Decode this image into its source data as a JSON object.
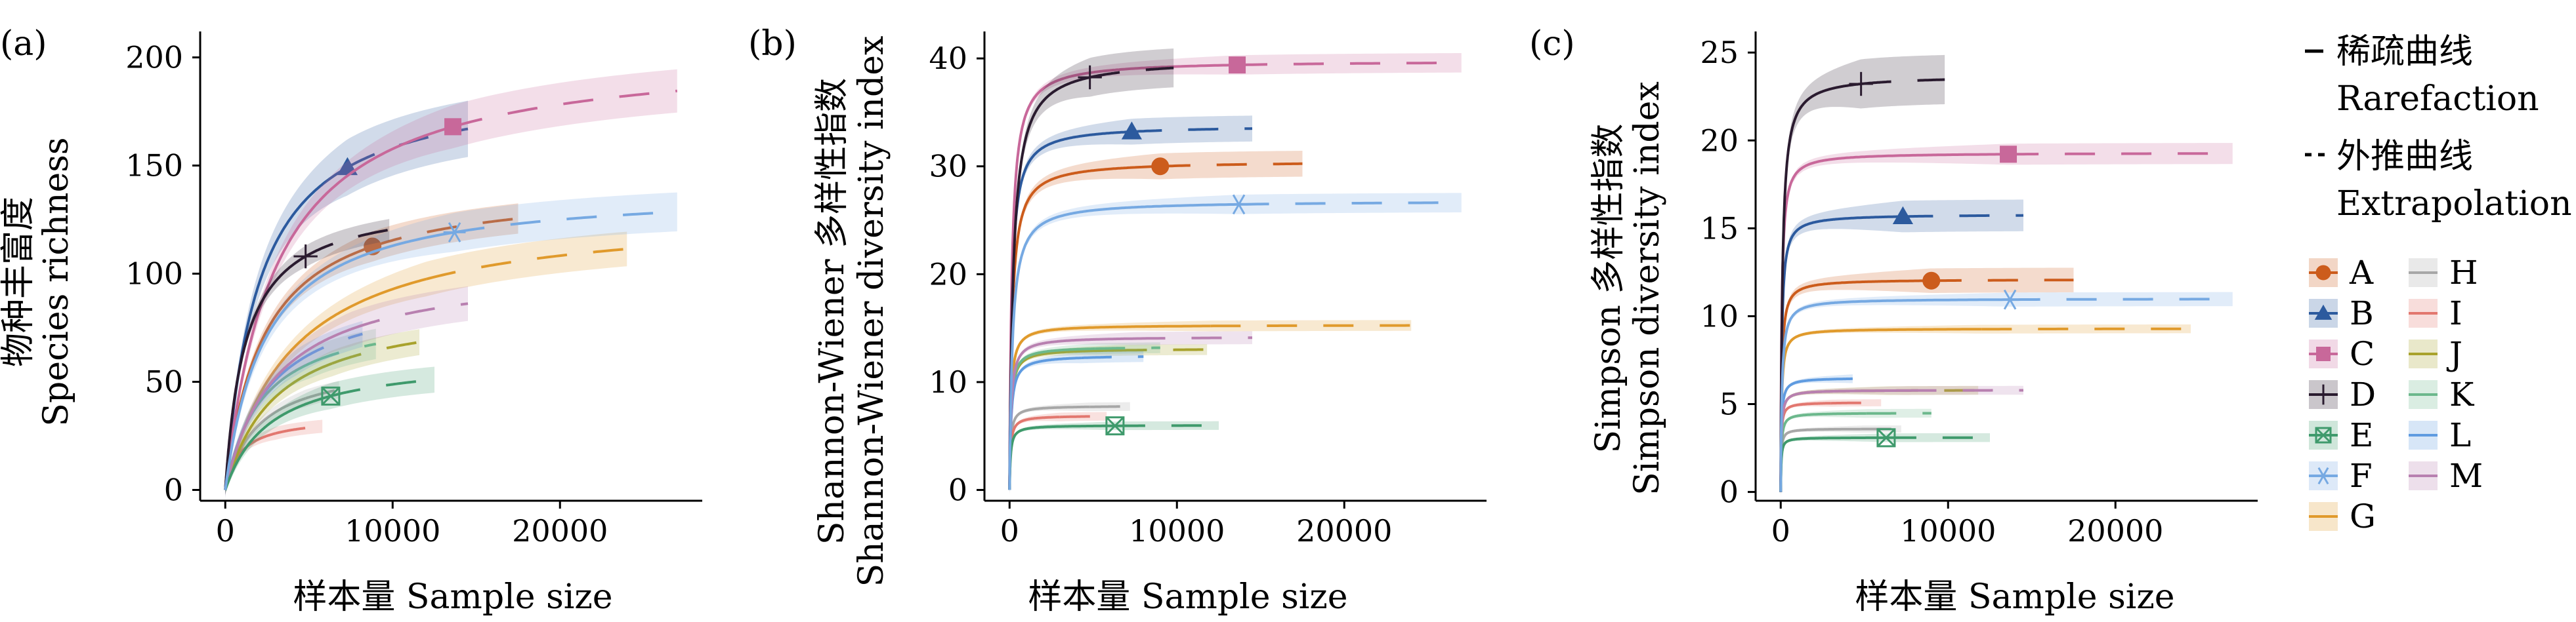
{
  "figure": {
    "xlabel": "样本量 Sample size",
    "legend_curve_items": [
      {
        "zh": "稀疏曲线",
        "en": "Rarefaction",
        "style": "solid"
      },
      {
        "zh": "外推曲线",
        "en": "Extrapolation",
        "style": "dashed"
      }
    ],
    "legend_groups": [
      {
        "label": "A",
        "color": "#cc5c1c",
        "marker": "circle"
      },
      {
        "label": "B",
        "color": "#2c5a9e",
        "marker": "triangle"
      },
      {
        "label": "C",
        "color": "#c8689a",
        "marker": "square"
      },
      {
        "label": "D",
        "color": "#2a1b2f",
        "marker": "square-plus"
      },
      {
        "label": "E",
        "color": "#3f9a6c",
        "marker": "square-x"
      },
      {
        "label": "F",
        "color": "#76a9e2",
        "marker": "asterisk"
      },
      {
        "label": "G",
        "color": "#e09a2c",
        "marker": "line"
      },
      {
        "label": "H",
        "color": "#a7a7a7",
        "marker": "line"
      },
      {
        "label": "I",
        "color": "#e2776f",
        "marker": "line"
      },
      {
        "label": "J",
        "color": "#a8a22c",
        "marker": "line"
      },
      {
        "label": "K",
        "color": "#6cb88c",
        "marker": "line"
      },
      {
        "label": "L",
        "color": "#5f9be0",
        "marker": "line"
      },
      {
        "label": "M",
        "color": "#b880b0",
        "marker": "line"
      }
    ]
  },
  "chart_data": [
    {
      "type": "line",
      "panel": "(a)",
      "ylabel_zh": "物种丰富度",
      "ylabel_en": "Species richness",
      "xlabel": "样本量 Sample size",
      "xlim": [
        -1500,
        28500
      ],
      "ylim": [
        -5,
        212
      ],
      "xticks": [
        0,
        10000,
        20000
      ],
      "xtick_labels": [
        "0",
        "10000",
        "20000"
      ],
      "yticks": [
        0,
        50,
        100,
        150,
        200
      ],
      "ytick_labels": [
        "0",
        "50",
        "100",
        "150",
        "200"
      ],
      "series": [
        {
          "name": "A",
          "asymptote": 142,
          "k": 2300,
          "observed_x": 8800,
          "end_x": 17500,
          "marker_x": 8800,
          "band": 7
        },
        {
          "name": "B",
          "asymptote": 190,
          "k": 2000,
          "observed_x": 7300,
          "end_x": 14500,
          "marker_x": 7300,
          "band": 13
        },
        {
          "name": "C",
          "asymptote": 205,
          "k": 3000,
          "observed_x": 13600,
          "end_x": 27000,
          "marker_x": 13600,
          "band": 10
        },
        {
          "name": "D",
          "asymptote": 135,
          "k": 1200,
          "observed_x": 4800,
          "end_x": 9800,
          "marker_x": 4800,
          "band": 5
        },
        {
          "name": "E",
          "asymptote": 62,
          "k": 2700,
          "observed_x": 6300,
          "end_x": 12500,
          "marker_x": 6300,
          "band": 6
        },
        {
          "name": "F",
          "asymptote": 140,
          "k": 2400,
          "observed_x": 13700,
          "end_x": 27000,
          "marker_x": 13700,
          "band": 9
        },
        {
          "name": "G",
          "asymptote": 130,
          "k": 4000,
          "observed_x": 12000,
          "end_x": 24000,
          "marker_x": null,
          "band": 8
        },
        {
          "name": "H",
          "asymptote": 60,
          "k": 2000,
          "observed_x": 4800,
          "end_x": 6800,
          "marker_x": null,
          "band": 4
        },
        {
          "name": "I",
          "asymptote": 34,
          "k": 900,
          "observed_x": 3000,
          "end_x": 5800,
          "marker_x": null,
          "band": 3
        },
        {
          "name": "J",
          "asymptote": 86,
          "k": 3000,
          "observed_x": 6400,
          "end_x": 11600,
          "marker_x": null,
          "band": 6
        },
        {
          "name": "K",
          "asymptote": 84,
          "k": 2200,
          "observed_x": 5100,
          "end_x": 9000,
          "marker_x": null,
          "band": 7
        },
        {
          "name": "L",
          "asymptote": 95,
          "k": 2600,
          "observed_x": 4300,
          "end_x": 8200,
          "marker_x": null,
          "band": 6
        },
        {
          "name": "M",
          "asymptote": 104,
          "k": 3000,
          "observed_x": 7500,
          "end_x": 14500,
          "marker_x": null,
          "band": 8
        }
      ]
    },
    {
      "type": "line",
      "panel": "(b)",
      "ylabel_zh": "Shannon-Wiener 多样性指数",
      "ylabel_en": "Shannon-Wiener diversity index",
      "xlabel": "样本量 Sample size",
      "xlim": [
        -1500,
        28500
      ],
      "ylim": [
        -1,
        42.5
      ],
      "xticks": [
        0,
        10000,
        20000
      ],
      "xtick_labels": [
        "0",
        "10000",
        "20000"
      ],
      "yticks": [
        0,
        10,
        20,
        30,
        40
      ],
      "ytick_labels": [
        "0",
        "10",
        "20",
        "30",
        "40"
      ],
      "series": [
        {
          "name": "A",
          "asymptote": 30.5,
          "k": 150,
          "observed_x": 9000,
          "end_x": 17500,
          "marker_x": 9000,
          "band": 1.2
        },
        {
          "name": "B",
          "asymptote": 33.8,
          "k": 130,
          "observed_x": 7300,
          "end_x": 14500,
          "marker_x": 7300,
          "band": 1.2
        },
        {
          "name": "C",
          "asymptote": 39.8,
          "k": 140,
          "observed_x": 13600,
          "end_x": 27000,
          "marker_x": 13600,
          "band": 0.9
        },
        {
          "name": "D",
          "asymptote": 40.0,
          "k": 220,
          "observed_x": 4800,
          "end_x": 9800,
          "marker_x": 4800,
          "band": 1.8
        },
        {
          "name": "E",
          "asymptote": 6.0,
          "k": 60,
          "observed_x": 6300,
          "end_x": 12500,
          "marker_x": 6300,
          "band": 0.4
        },
        {
          "name": "F",
          "asymptote": 26.8,
          "k": 170,
          "observed_x": 13700,
          "end_x": 27000,
          "marker_x": 13700,
          "band": 0.9
        },
        {
          "name": "G",
          "asymptote": 15.3,
          "k": 80,
          "observed_x": 12000,
          "end_x": 24000,
          "marker_x": null,
          "band": 0.5
        },
        {
          "name": "H",
          "asymptote": 7.8,
          "k": 60,
          "observed_x": 4800,
          "end_x": 7200,
          "marker_x": null,
          "band": 0.4
        },
        {
          "name": "I",
          "asymptote": 6.9,
          "k": 60,
          "observed_x": 3000,
          "end_x": 5800,
          "marker_x": null,
          "band": 0.4
        },
        {
          "name": "J",
          "asymptote": 13.1,
          "k": 80,
          "observed_x": 6400,
          "end_x": 11800,
          "marker_x": null,
          "band": 0.5
        },
        {
          "name": "K",
          "asymptote": 13.3,
          "k": 80,
          "observed_x": 5100,
          "end_x": 9000,
          "marker_x": null,
          "band": 0.5
        },
        {
          "name": "L",
          "asymptote": 12.5,
          "k": 90,
          "observed_x": 4300,
          "end_x": 8000,
          "marker_x": null,
          "band": 0.5
        },
        {
          "name": "M",
          "asymptote": 14.2,
          "k": 90,
          "observed_x": 7500,
          "end_x": 14500,
          "marker_x": null,
          "band": 0.6
        }
      ]
    },
    {
      "type": "line",
      "panel": "(c)",
      "ylabel_zh": "Simpson 多样性指数",
      "ylabel_en": "Simpson diversity index",
      "xlabel": "样本量 Sample size",
      "xlim": [
        -1500,
        28500
      ],
      "ylim": [
        -0.5,
        26.2
      ],
      "xticks": [
        0,
        10000,
        20000
      ],
      "xtick_labels": [
        "0",
        "10000",
        "20000"
      ],
      "yticks": [
        0,
        5,
        10,
        15,
        20,
        25
      ],
      "ytick_labels": [
        "0",
        "5",
        "10",
        "15",
        "20",
        "25"
      ],
      "series": [
        {
          "name": "A",
          "asymptote": 12.1,
          "k": 60,
          "observed_x": 9000,
          "end_x": 17500,
          "marker_x": 9000,
          "band": 0.7
        },
        {
          "name": "B",
          "asymptote": 15.8,
          "k": 60,
          "observed_x": 7300,
          "end_x": 14500,
          "marker_x": 7300,
          "band": 0.9
        },
        {
          "name": "C",
          "asymptote": 19.3,
          "k": 60,
          "observed_x": 13600,
          "end_x": 27000,
          "marker_x": 13600,
          "band": 0.6
        },
        {
          "name": "D",
          "asymptote": 23.7,
          "k": 100,
          "observed_x": 4800,
          "end_x": 9800,
          "marker_x": 4800,
          "band": 1.4
        },
        {
          "name": "E",
          "asymptote": 3.1,
          "k": 30,
          "observed_x": 6300,
          "end_x": 12500,
          "marker_x": 6300,
          "band": 0.25
        },
        {
          "name": "F",
          "asymptote": 11.0,
          "k": 70,
          "observed_x": 13700,
          "end_x": 27000,
          "marker_x": 13700,
          "band": 0.4
        },
        {
          "name": "G",
          "asymptote": 9.3,
          "k": 50,
          "observed_x": 12000,
          "end_x": 24500,
          "marker_x": null,
          "band": 0.25
        },
        {
          "name": "H",
          "asymptote": 3.6,
          "k": 30,
          "observed_x": 4800,
          "end_x": 7200,
          "marker_x": null,
          "band": 0.2
        },
        {
          "name": "I",
          "asymptote": 5.1,
          "k": 30,
          "observed_x": 3000,
          "end_x": 6000,
          "marker_x": null,
          "band": 0.2
        },
        {
          "name": "J",
          "asymptote": 5.8,
          "k": 40,
          "observed_x": 6400,
          "end_x": 11800,
          "marker_x": null,
          "band": 0.25
        },
        {
          "name": "K",
          "asymptote": 4.5,
          "k": 40,
          "observed_x": 5100,
          "end_x": 9000,
          "marker_x": null,
          "band": 0.25
        },
        {
          "name": "L",
          "asymptote": 6.5,
          "k": 40,
          "observed_x": 4300,
          "end_x": 4300,
          "marker_x": null,
          "band": 0.25
        },
        {
          "name": "M",
          "asymptote": 5.8,
          "k": 40,
          "observed_x": 7500,
          "end_x": 14500,
          "marker_x": null,
          "band": 0.25
        }
      ]
    }
  ]
}
